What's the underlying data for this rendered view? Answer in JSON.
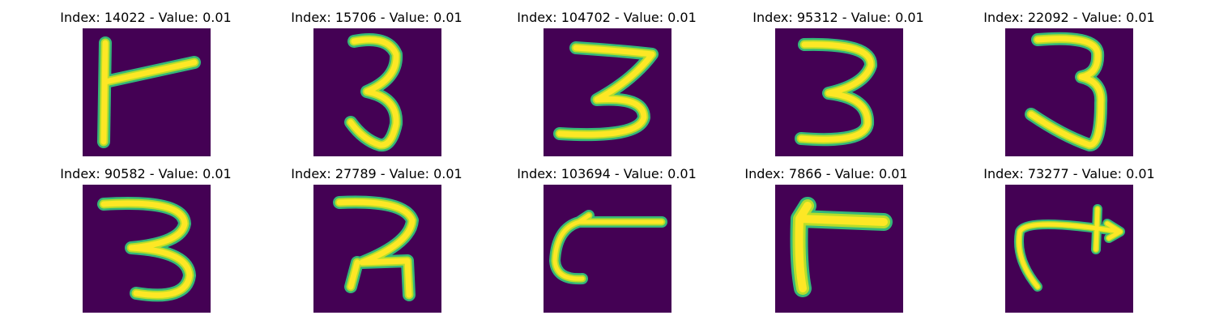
{
  "colors": {
    "background": "#440154",
    "edge": "#35b779",
    "mid": "#b5de2b",
    "core": "#fde725"
  },
  "images": [
    {
      "label": "Index: 14022 - Value: 0.01",
      "glyph": "flag-shape"
    },
    {
      "label": "Index: 15706 - Value: 0.01",
      "glyph": "digit-3"
    },
    {
      "label": "Index: 104702 - Value: 0.01",
      "glyph": "digit-3-wide"
    },
    {
      "label": "Index: 95312 - Value: 0.01",
      "glyph": "digit-3"
    },
    {
      "label": "Index: 22092 - Value: 0.01",
      "glyph": "digit-3-tall"
    },
    {
      "label": "Index: 90582 - Value: 0.01",
      "glyph": "digit-3"
    },
    {
      "label": "Index: 27789 - Value: 0.01",
      "glyph": "digit-3-sharp"
    },
    {
      "label": "Index: 103694 - Value: 0.01",
      "glyph": "hook-shape"
    },
    {
      "label": "Index: 7866 - Value: 0.01",
      "glyph": "corner-shape"
    },
    {
      "label": "Index: 73277 - Value: 0.01",
      "glyph": "arrow-shape"
    }
  ]
}
